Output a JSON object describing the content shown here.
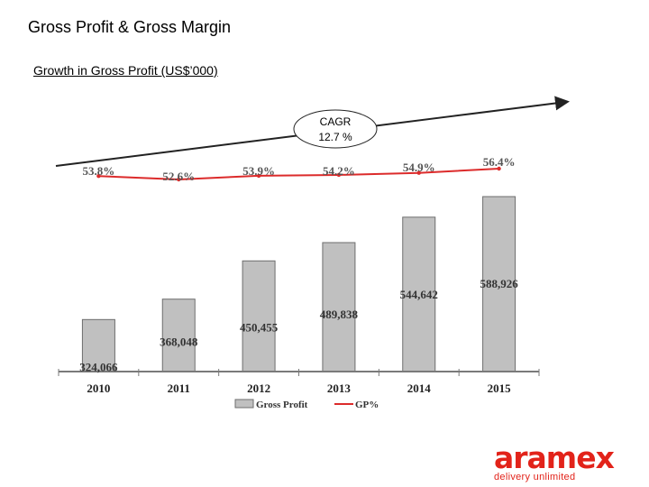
{
  "page": {
    "title": "Gross Profit & Gross Margin",
    "subtitle": "Growth in Gross Profit (US$’000)"
  },
  "cagr": {
    "label_line1": "CAGR",
    "label_line2": "12.7 %"
  },
  "colors": {
    "bar_fill": "#c0c0c0",
    "bar_stroke": "#6e6e6e",
    "line": "#dc2b2b",
    "brand": "#e2231a"
  },
  "chart_data": {
    "type": "bar",
    "categories": [
      "2010",
      "2011",
      "2012",
      "2013",
      "2014",
      "2015"
    ],
    "series": [
      {
        "name": "Gross Profit",
        "type": "bar",
        "values": [
          324066,
          368048,
          450455,
          489838,
          544642,
          588926
        ],
        "labels": [
          "324,066",
          "368,048",
          "450,455",
          "489,838",
          "544,642",
          "588,926"
        ]
      },
      {
        "name": "GP%",
        "type": "line",
        "values": [
          53.8,
          52.6,
          53.9,
          54.2,
          54.9,
          56.4
        ],
        "labels": [
          "53.8%",
          "52.6%",
          "53.9%",
          "54.2%",
          "54.9%",
          "56.4%"
        ]
      }
    ],
    "legend": "bottom",
    "grid": false
  },
  "brand": {
    "name": "aramex",
    "tagline": "delivery unlimited"
  }
}
